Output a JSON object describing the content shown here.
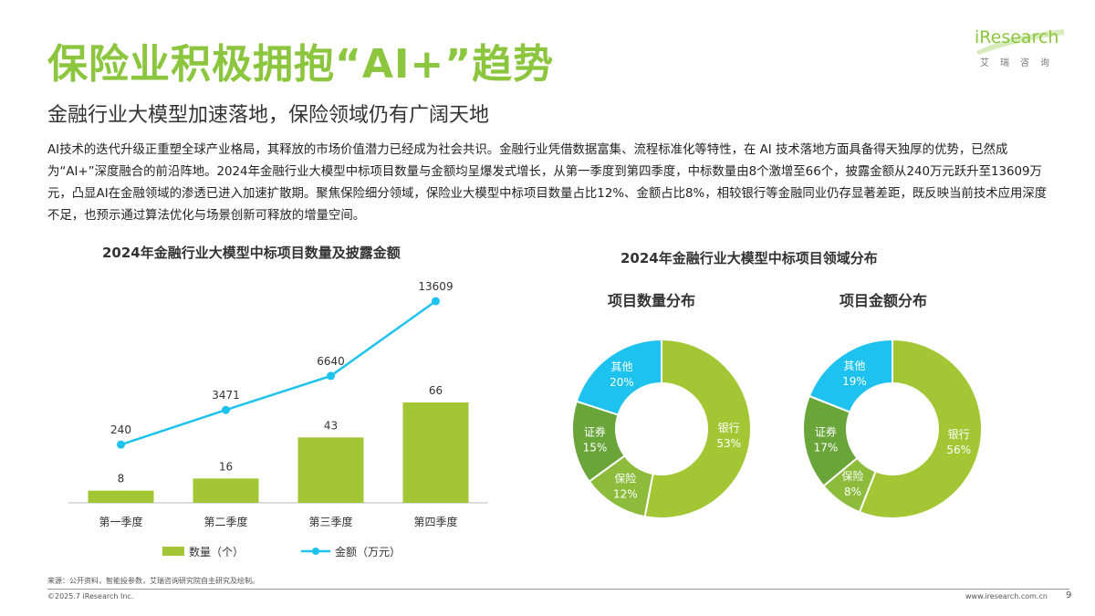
{
  "header": {
    "title": "保险业积极拥抱“AI+”趋势",
    "subtitle": "金融行业大模型加速落地，保险领域仍有广阔天地",
    "logo_word": "iResearch",
    "logo_cn": "艾瑞咨询"
  },
  "body_text": "AI技术的迭代升级正重塑全球产业格局，其释放的市场价值潜力已经成为社会共识。金融行业凭借数据富集、流程标准化等特性，在 AI 技术落地方面具备得天独厚的优势，已然成为“AI+”深度融合的前沿阵地。2024年金融行业大模型中标项目数量与金额均呈爆发式增长，从第一季度到第四季度，中标数量由8个激增至66个，披露金额从240万元跃升至13609万元，凸显AI在金融领域的渗透已进入加速扩散期。聚焦保险细分领域，保险业大模型中标项目数量占比12%、金额占比8%，相较银行等金融同业仍存显著差距，既反映当前技术应用深度不足，也预示通过算法优化与场景创新可释放的增量空间。",
  "colors": {
    "green": "#a3c734",
    "light_green": "#8cc63f",
    "dark_green": "#6aa53a",
    "mid_green": "#8dbb3c",
    "cyan": "#1ec2ee"
  },
  "chart_data": [
    {
      "type": "bar",
      "title": "2024年金融行业大模型中标项目数量及披露金额",
      "categories": [
        "第一季度",
        "第二季度",
        "第三季度",
        "第四季度"
      ],
      "series": [
        {
          "name": "数量（个）",
          "type": "bar",
          "values": [
            8,
            16,
            43,
            66
          ]
        },
        {
          "name": "金额（万元）",
          "type": "line",
          "values": [
            240,
            3471,
            6640,
            13609
          ]
        }
      ],
      "legend_position": "bottom",
      "grid": false
    },
    {
      "type": "pie",
      "title": "2024年金融行业大模型中标项目领域分布",
      "subtitle": "项目数量分布",
      "slices": [
        {
          "label": "银行",
          "value": 53,
          "display": "53%"
        },
        {
          "label": "保险",
          "value": 12,
          "display": "12%"
        },
        {
          "label": "证券",
          "value": 15,
          "display": "15%"
        },
        {
          "label": "其他",
          "value": 20,
          "display": "20%"
        }
      ]
    },
    {
      "type": "pie",
      "subtitle": "项目金额分布",
      "slices": [
        {
          "label": "银行",
          "value": 56,
          "display": "56%"
        },
        {
          "label": "保险",
          "value": 8,
          "display": "8%"
        },
        {
          "label": "证券",
          "value": 17,
          "display": "17%"
        },
        {
          "label": "其他",
          "value": 19,
          "display": "19%"
        }
      ]
    }
  ],
  "footer": {
    "source": "来源：公开资料，智能投参数，艾瑞咨询研究院自主研究及绘制。",
    "copyright": "©2025.7 iResearch Inc.",
    "site": "www.iresearch.com.cn",
    "page": "9"
  }
}
